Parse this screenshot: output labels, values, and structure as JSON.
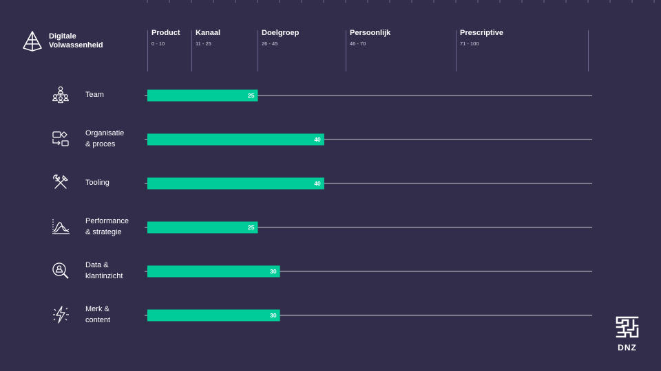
{
  "logo": {
    "line1": "Digitale",
    "line2": "Volwassenheid"
  },
  "phases": [
    {
      "name": "Product",
      "range": "0 - 10"
    },
    {
      "name": "Kanaal",
      "range": "11 - 25"
    },
    {
      "name": "Doelgroep",
      "range": "26 - 45"
    },
    {
      "name": "Persoonlijk",
      "range": "46 - 70"
    },
    {
      "name": "Prescriptive",
      "range": "71 - 100"
    }
  ],
  "categories": [
    {
      "line1": "Team",
      "line2": "",
      "icon": "team-icon"
    },
    {
      "line1": "Organisatie",
      "line2": "& proces",
      "icon": "process-icon"
    },
    {
      "line1": "Tooling",
      "line2": "",
      "icon": "tools-icon"
    },
    {
      "line1": "Performance",
      "line2": "& strategie",
      "icon": "performance-icon"
    },
    {
      "line1": "Data &",
      "line2": "klantinzicht",
      "icon": "customer-insight-icon"
    },
    {
      "line1": "Merk &",
      "line2": "content",
      "icon": "lightning-icon"
    }
  ],
  "brand": {
    "name": "DNZ"
  },
  "colors": {
    "background": "#312d4b",
    "bar": "#00cc99",
    "text": "#ffffff"
  },
  "chart_data": {
    "type": "bar",
    "orientation": "horizontal",
    "categories": [
      "Team",
      "Organisatie & proces",
      "Tooling",
      "Performance & strategie",
      "Data & klantinzicht",
      "Merk & content"
    ],
    "values": [
      25,
      40,
      40,
      25,
      30,
      30
    ],
    "xlim": [
      0,
      100
    ],
    "data_labels": true
  }
}
